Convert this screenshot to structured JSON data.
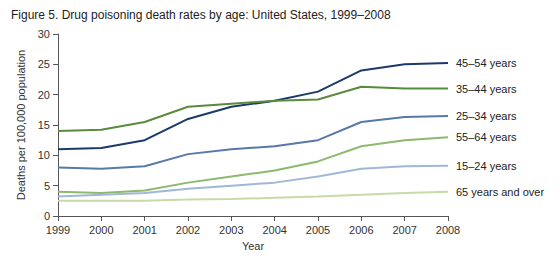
{
  "chart_data": {
    "type": "line",
    "title": "Figure 5. Drug poisoning death rates by age: United States, 1999–2008",
    "x_label": "Year",
    "y_label": "Deaths per 100,000 population",
    "x": [
      1999,
      2000,
      2001,
      2002,
      2003,
      2004,
      2005,
      2006,
      2007,
      2008
    ],
    "series": [
      {
        "name": "45–54 years",
        "color": "#1a3a6b",
        "values": [
          11.0,
          11.2,
          12.5,
          16.0,
          18.0,
          19.0,
          20.5,
          24.0,
          25.0,
          25.2
        ]
      },
      {
        "name": "35–44 years",
        "color": "#5a8a3c",
        "values": [
          14.0,
          14.2,
          15.5,
          18.0,
          18.5,
          19.0,
          19.2,
          21.3,
          21.0,
          21.0
        ]
      },
      {
        "name": "25–34 years",
        "color": "#5878a8",
        "values": [
          8.0,
          7.8,
          8.2,
          10.2,
          11.0,
          11.5,
          12.5,
          15.5,
          16.3,
          16.5
        ]
      },
      {
        "name": "55–64 years",
        "color": "#8db86e",
        "values": [
          4.0,
          3.8,
          4.2,
          5.5,
          6.5,
          7.5,
          9.0,
          11.5,
          12.5,
          13.0
        ]
      },
      {
        "name": "15–24 years",
        "color": "#a0b8d8",
        "values": [
          3.2,
          3.5,
          3.8,
          4.5,
          5.0,
          5.5,
          6.5,
          7.8,
          8.2,
          8.3
        ]
      },
      {
        "name": "65 years and over",
        "color": "#c8daa8",
        "values": [
          2.5,
          2.5,
          2.5,
          2.7,
          2.8,
          3.0,
          3.2,
          3.5,
          3.8,
          4.0
        ]
      }
    ],
    "xlim": [
      1999,
      2008
    ],
    "xticks": [
      1999,
      2000,
      2001,
      2002,
      2003,
      2004,
      2005,
      2006,
      2007,
      2008
    ],
    "ylim": [
      0,
      30
    ],
    "yticks": [
      0,
      5,
      10,
      15,
      20,
      25,
      30
    ],
    "grid": false
  }
}
